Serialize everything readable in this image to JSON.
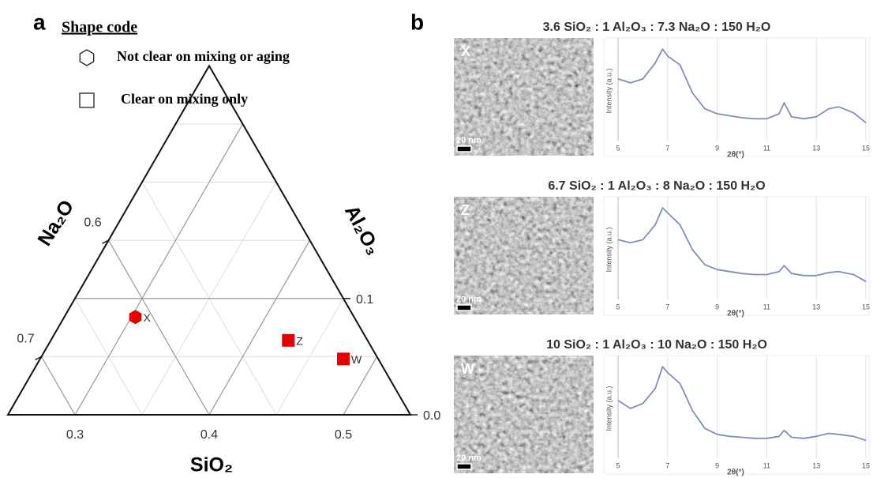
{
  "panel_a_label": "a",
  "legend": {
    "title": "Shape code",
    "items": [
      {
        "shape": "hexagon",
        "label": "Not clear on mixing or aging"
      },
      {
        "shape": "square",
        "label": "Clear on mixing only"
      }
    ]
  },
  "panel_b_label": "b",
  "tem": [
    {
      "label": "X",
      "scale": "20 nm"
    },
    {
      "label": "Z",
      "scale": "20 nm"
    },
    {
      "label": "W",
      "scale": "20 nm"
    }
  ],
  "chart_data": [
    {
      "type": "ternary",
      "sio2_label": "SiO₂",
      "al2o3_label": "Al₂O₃",
      "na2o_label": "Na₂O",
      "sio2_lim": [
        0.25,
        0.55
      ],
      "al2o3_lim": [
        0,
        0.3
      ],
      "na2o_lim": [
        0.45,
        0.75
      ],
      "sio2_ticks": [
        0.3,
        0.4,
        0.5
      ],
      "sio2_minor": [
        0.35,
        0.45
      ],
      "al2o3_ticks": [
        {
          "value": 0,
          "label": "0.0"
        },
        0.1
      ],
      "al2o3_minor": [
        0.05,
        0.15,
        0.2,
        0.25
      ],
      "na2o_ticks": [
        0.6,
        0.7
      ],
      "na2o_minor": [
        0.55,
        0.65
      ],
      "series": [
        {
          "name": "X",
          "shape": "hexagon",
          "color": "#e60000",
          "sio2": 0.303,
          "al2o3": 0.084
        },
        {
          "name": "Z",
          "shape": "square",
          "color": "#e60000",
          "sio2": 0.427,
          "al2o3": 0.064
        },
        {
          "name": "W",
          "shape": "square",
          "color": "#e60000",
          "sio2": 0.476,
          "al2o3": 0.048
        }
      ]
    },
    {
      "type": "line",
      "title": "3.6 SiO₂ : 1 Al₂O₃ : 7.3 Na₂O : 150 H₂O",
      "x_label": "2θ(°)",
      "y_label": "Intensity (a.u.)",
      "x": [
        5,
        5.5,
        6,
        6.5,
        6.8,
        7,
        7.5,
        8,
        8.5,
        9,
        9.5,
        10,
        10.5,
        11,
        11.5,
        11.7,
        12,
        12.5,
        13,
        13.5,
        13.9,
        14.5,
        15
      ],
      "values": [
        0.62,
        0.58,
        0.62,
        0.78,
        0.92,
        0.85,
        0.76,
        0.48,
        0.32,
        0.27,
        0.25,
        0.23,
        0.22,
        0.22,
        0.27,
        0.38,
        0.24,
        0.22,
        0.24,
        0.32,
        0.34,
        0.28,
        0.18
      ],
      "color": "#7f8fb8",
      "xlim": [
        5,
        15
      ],
      "xticks": [
        5,
        7,
        9,
        11,
        13,
        15
      ],
      "ylim": [
        0,
        1
      ],
      "grid": true
    },
    {
      "type": "line",
      "title": "6.7 SiO₂ : 1 Al₂O₃ : 8 Na₂O : 150 H₂O",
      "x_label": "2θ(°)",
      "y_label": "Intensity (a.u.)",
      "x": [
        5,
        5.5,
        6,
        6.5,
        6.8,
        7,
        7.5,
        8,
        8.5,
        9,
        9.5,
        10,
        10.5,
        11,
        11.5,
        11.7,
        12,
        12.5,
        13,
        13.5,
        13.9,
        14.5,
        15
      ],
      "values": [
        0.6,
        0.57,
        0.6,
        0.75,
        0.92,
        0.87,
        0.75,
        0.5,
        0.35,
        0.3,
        0.28,
        0.26,
        0.25,
        0.25,
        0.28,
        0.34,
        0.26,
        0.24,
        0.24,
        0.27,
        0.28,
        0.25,
        0.18
      ],
      "color": "#7f8fb8",
      "xlim": [
        5,
        15
      ],
      "xticks": [
        5,
        7,
        9,
        11,
        13,
        15
      ],
      "ylim": [
        0,
        1
      ],
      "grid": true
    },
    {
      "type": "line",
      "title": "10 SiO₂ : 1 Al₂O₃ : 10 Na₂O : 150 H₂O",
      "x_label": "2θ(°)",
      "y_label": "Intensity (a.u.)",
      "x": [
        5,
        5.5,
        6,
        6.5,
        6.8,
        7,
        7.5,
        8,
        8.5,
        9,
        9.5,
        10,
        10.5,
        11,
        11.5,
        11.7,
        12,
        12.5,
        13,
        13.5,
        13.9,
        14.5,
        15
      ],
      "values": [
        0.58,
        0.5,
        0.55,
        0.7,
        0.92,
        0.86,
        0.75,
        0.48,
        0.3,
        0.24,
        0.22,
        0.21,
        0.2,
        0.2,
        0.22,
        0.28,
        0.21,
        0.2,
        0.22,
        0.25,
        0.24,
        0.22,
        0.18
      ],
      "color": "#7f8fb8",
      "xlim": [
        5,
        15
      ],
      "xticks": [
        5,
        7,
        9,
        11,
        13,
        15
      ],
      "ylim": [
        0,
        1
      ],
      "grid": true
    }
  ]
}
